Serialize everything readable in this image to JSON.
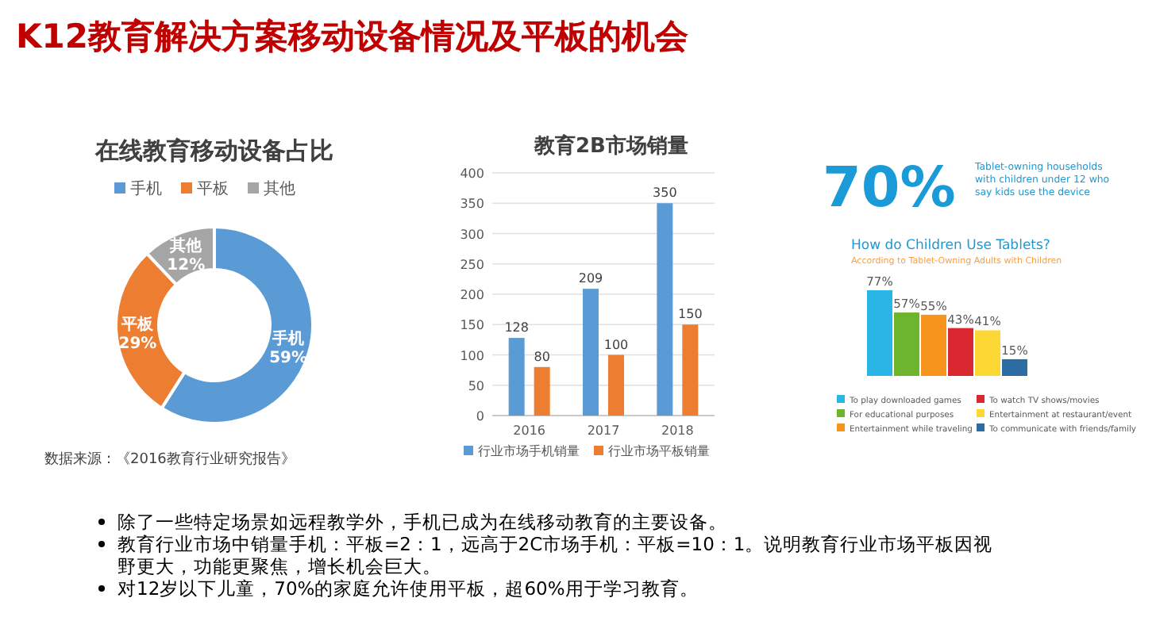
{
  "chart_data": [
    {
      "type": "other",
      "title": "K12教育解决方案移动设备情况及平板的机会",
      "annotations": [
        "除了一些特定场景如远程教学外，手机已成为在线移动教育的主要设备。",
        "教育行业市场中销量手机：平板=2：1，远高于2C市场手机：平板=10：1。说明教育行业市场平板因视野更大，功能更聚焦，增长机会巨大。",
        "对12岁以下儿童，70%的家庭允许使用平板，超60%用于学习教育。"
      ]
    },
    {
      "type": "donut",
      "title": "在线教育移动设备占比",
      "categories": [
        "手机",
        "平板",
        "其他"
      ],
      "values": [
        59,
        29,
        12
      ],
      "value_labels": [
        "59%",
        "29%",
        "12%"
      ],
      "colors": [
        "#5b9bd5",
        "#ed7d31",
        "#a5a5a5"
      ],
      "legend": "top",
      "annotations": [
        "数据来源：《2016教育行业研究报告》"
      ]
    },
    {
      "type": "bar",
      "title": "教育2B市场销量",
      "categories": [
        "2016",
        "2017",
        "2018"
      ],
      "series": [
        {
          "name": "行业市场手机销量",
          "color": "#5b9bd5",
          "values": [
            128,
            209,
            350
          ]
        },
        {
          "name": "行业市场平板销量",
          "color": "#ed7d31",
          "values": [
            80,
            100,
            150
          ]
        }
      ],
      "ylim": [
        0,
        400
      ],
      "yticks": [
        0,
        50,
        100,
        150,
        200,
        250,
        300,
        350,
        400
      ],
      "grid": "y",
      "legend": "bottom",
      "data_labels": true
    },
    {
      "type": "bar",
      "title": "How do Children Use Tablets?",
      "subtitle": "According to Tablet-Owning Adults with Children",
      "categories": [
        null
      ],
      "series": [
        {
          "name": "To play downloaded games",
          "color": "#29b6e6",
          "values": [
            77
          ],
          "value_labels": [
            "77%"
          ]
        },
        {
          "name": "For educational purposes",
          "color": "#6cb52d",
          "values": [
            57
          ],
          "value_labels": [
            "57%"
          ]
        },
        {
          "name": "Entertainment while traveling",
          "color": "#f7941d",
          "values": [
            55
          ],
          "value_labels": [
            "55%"
          ]
        },
        {
          "name": "To watch TV shows/movies",
          "color": "#d9282f",
          "values": [
            43
          ],
          "value_labels": [
            "43%"
          ]
        },
        {
          "name": "Entertainment at restaurant/event",
          "color": "#fdd835",
          "values": [
            41
          ],
          "value_labels": [
            "41%"
          ]
        },
        {
          "name": "To communicate with friends/family",
          "color": "#2b6ca3",
          "values": [
            15
          ],
          "value_labels": [
            "15%"
          ]
        }
      ],
      "legend": "bottom",
      "annotations": [
        "70%",
        "Tablet-owning households with children under 12 who say kids use the device"
      ]
    }
  ]
}
